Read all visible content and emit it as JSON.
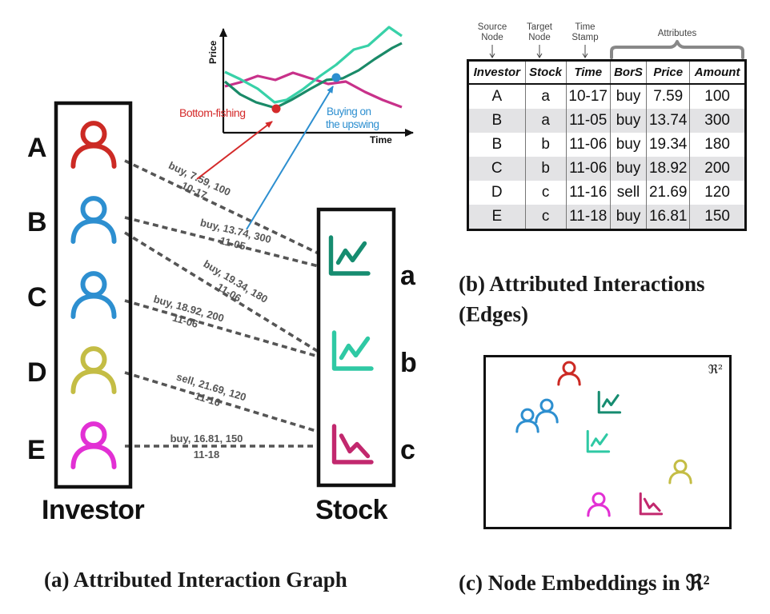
{
  "panel_a": {
    "investors": [
      {
        "label": "A",
        "color": "#cc2a24"
      },
      {
        "label": "B",
        "color": "#2d8fd0"
      },
      {
        "label": "C",
        "color": "#2d8fd0"
      },
      {
        "label": "D",
        "color": "#c4bd45"
      },
      {
        "label": "E",
        "color": "#e230d4"
      }
    ],
    "stocks": [
      {
        "label": "a",
        "color": "#168c70"
      },
      {
        "label": "b",
        "color": "#2fc9a4"
      },
      {
        "label": "c",
        "color": "#c2286e"
      }
    ],
    "investor_title": "Investor",
    "stock_title": "Stock",
    "edges": [
      {
        "from": "A",
        "to": "a",
        "attrs": "buy, 7.59, 100",
        "time": "10-17"
      },
      {
        "from": "B",
        "to": "a",
        "attrs": "buy, 13.74, 300",
        "time": "11-05"
      },
      {
        "from": "B",
        "to": "b",
        "attrs": "buy, 19.34, 180",
        "time": "11-06"
      },
      {
        "from": "C",
        "to": "b",
        "attrs": "buy, 18.92, 200",
        "time": "11-06"
      },
      {
        "from": "D",
        "to": "c",
        "attrs": "sell, 21.69, 120",
        "time": "11-16"
      },
      {
        "from": "E",
        "to": "c",
        "attrs": "buy, 16.81, 150",
        "time": "11-18"
      }
    ],
    "inset": {
      "y_label": "Price",
      "x_label": "Time",
      "bottom_fishing_label": "Bottom-fishing",
      "upswing_label_line1": "Buying on",
      "upswing_label_line2": "the upswing",
      "colors": {
        "red": "#d42a2a",
        "blue": "#2d8fd0"
      }
    },
    "caption": "(a) Attributed Interaction Graph"
  },
  "panel_b": {
    "header_notes": {
      "source_node": "Source\nNode",
      "target_node": "Target\nNode",
      "time_stamp": "Time\nStamp",
      "attributes": "Attributes"
    },
    "columns": [
      "Investor",
      "Stock",
      "Time",
      "BorS",
      "Price",
      "Amount"
    ],
    "rows": [
      [
        "A",
        "a",
        "10-17",
        "buy",
        "7.59",
        "100"
      ],
      [
        "B",
        "a",
        "11-05",
        "buy",
        "13.74",
        "300"
      ],
      [
        "B",
        "b",
        "11-06",
        "buy",
        "19.34",
        "180"
      ],
      [
        "C",
        "b",
        "11-06",
        "buy",
        "18.92",
        "200"
      ],
      [
        "D",
        "c",
        "11-16",
        "sell",
        "21.69",
        "120"
      ],
      [
        "E",
        "c",
        "11-18",
        "buy",
        "16.81",
        "150"
      ]
    ],
    "caption_line1": "(b) Attributed Interactions",
    "caption_line2": "(Edges)"
  },
  "panel_c": {
    "space_label": "ℜ²",
    "caption": "(c) Node Embeddings in ℜ²"
  }
}
